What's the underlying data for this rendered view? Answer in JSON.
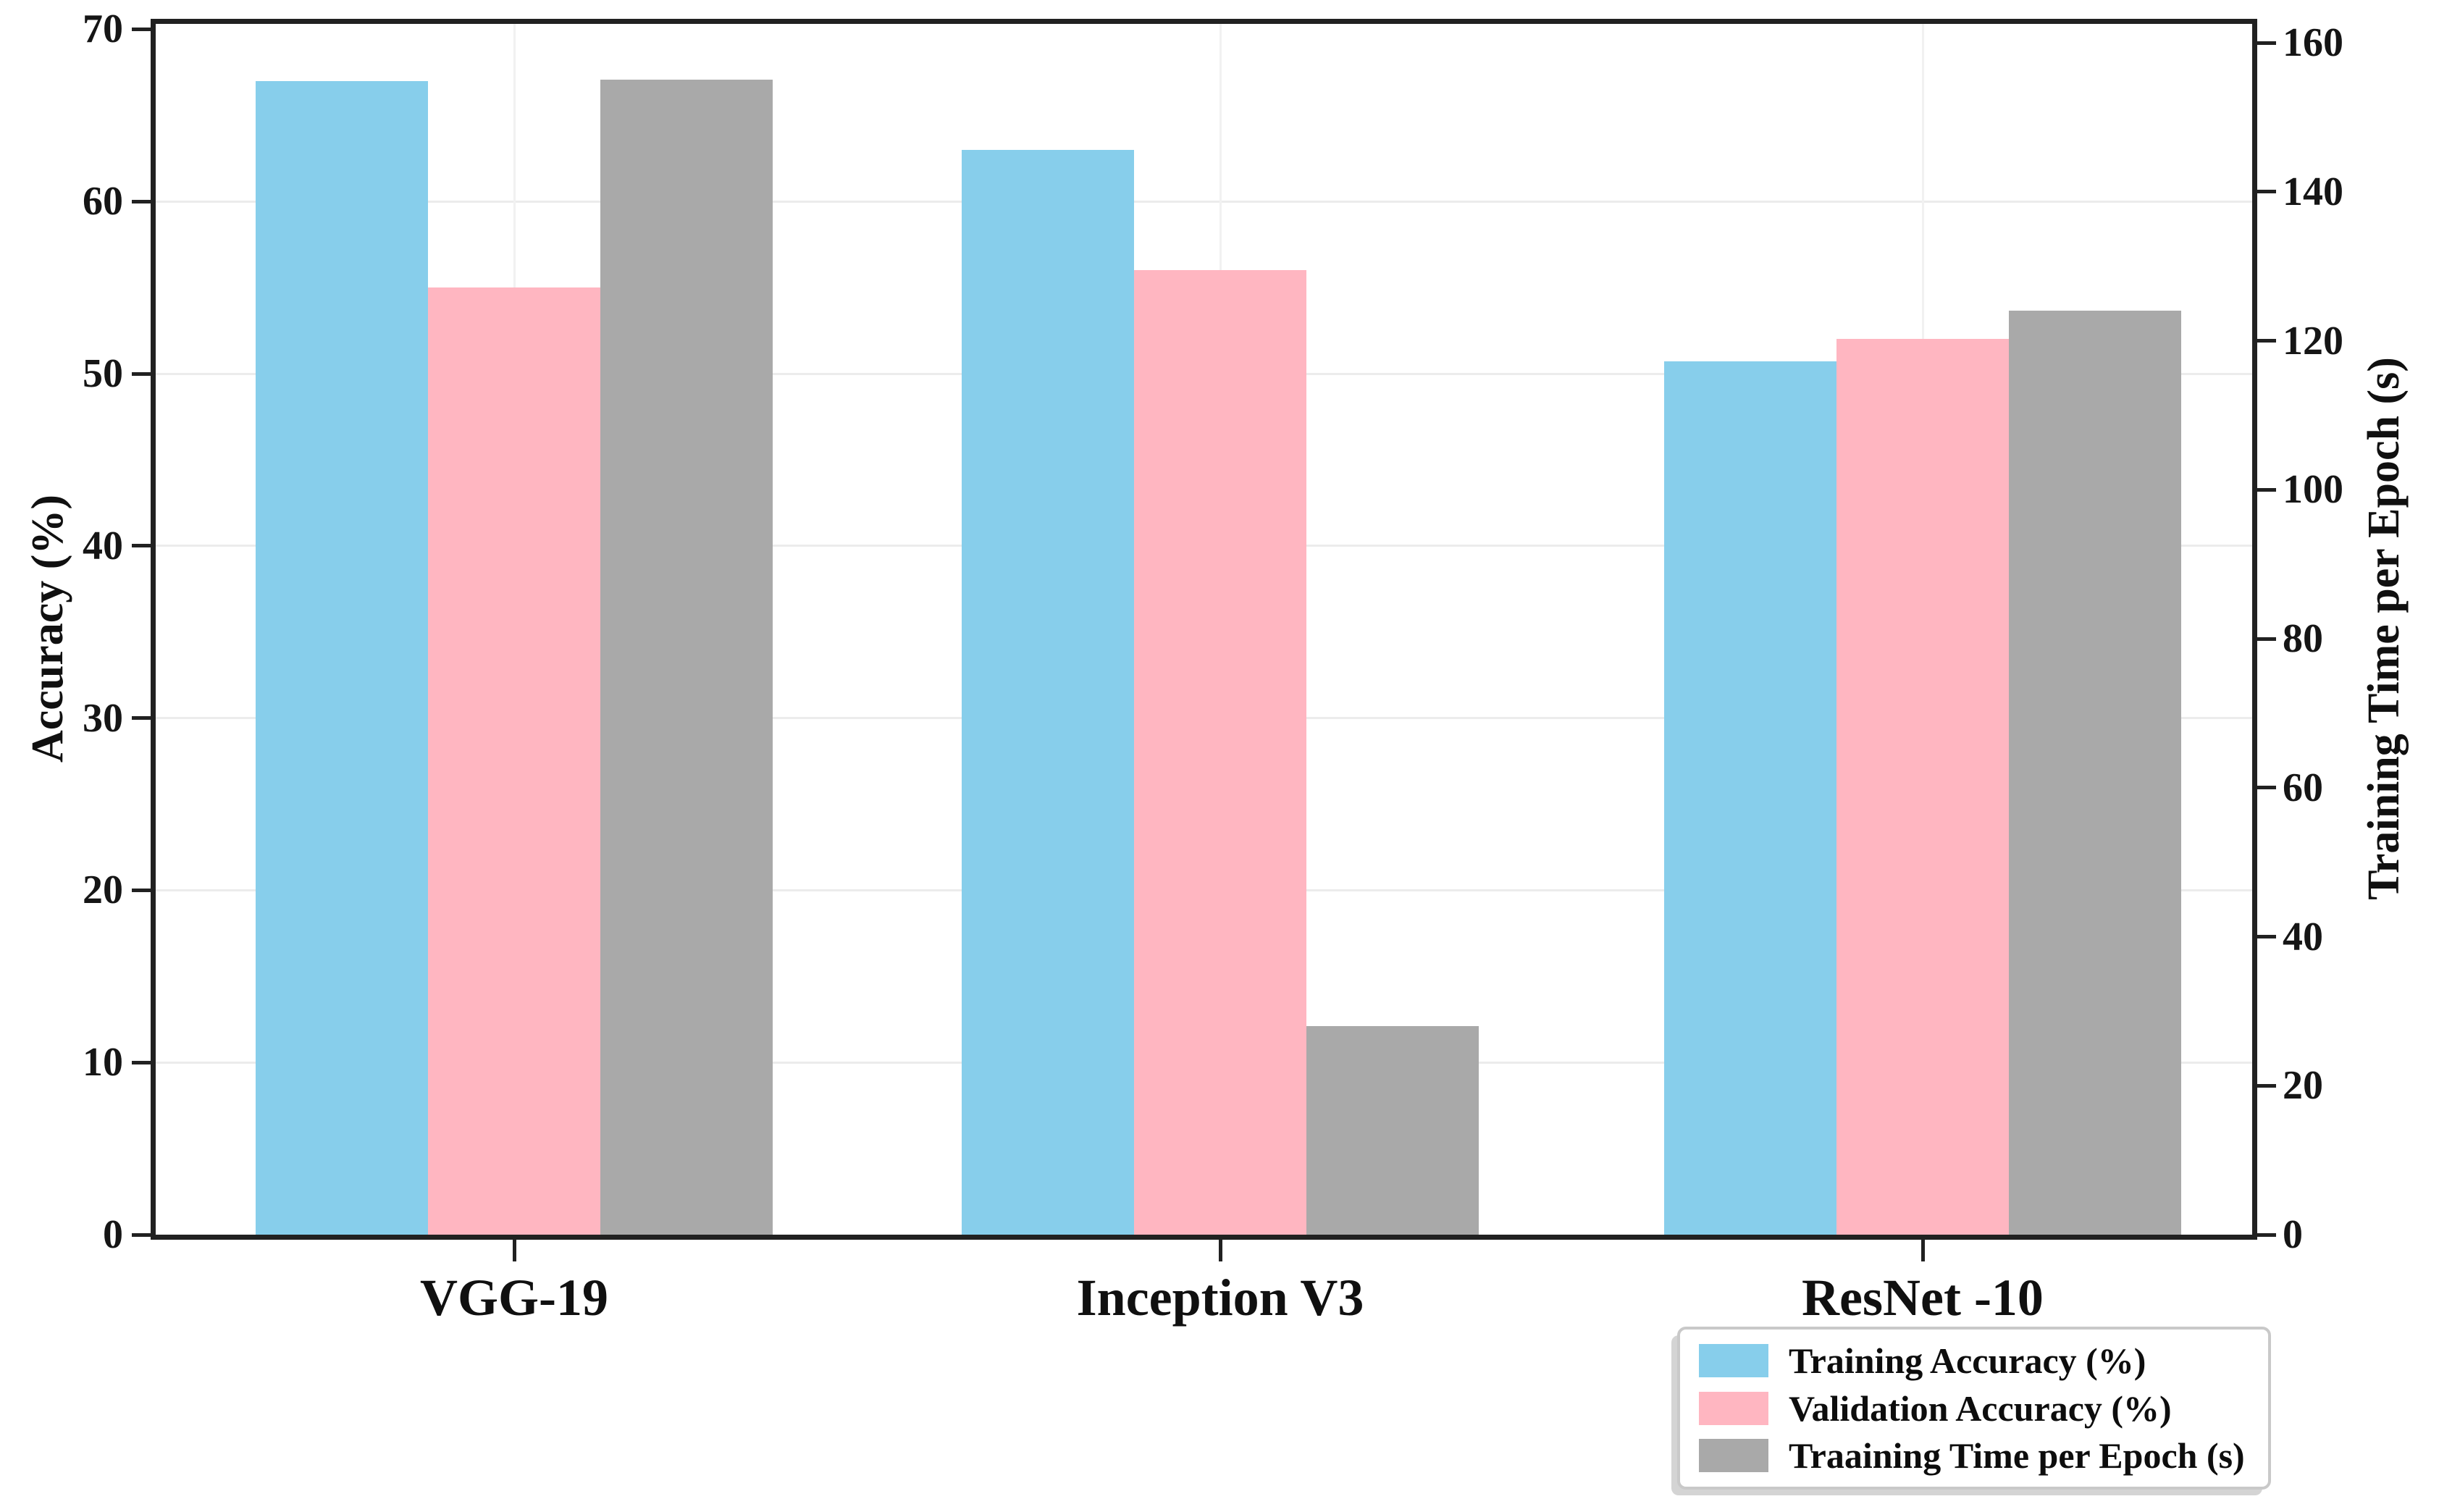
{
  "chart_data": {
    "type": "bar",
    "title": "",
    "categories": [
      "VGG-19",
      "Inception V3",
      "ResNet -10"
    ],
    "series": [
      {
        "name": "Training Accuracy (%)",
        "axis": "left",
        "color": "#87CEEB",
        "values": [
          67,
          63,
          50.7
        ]
      },
      {
        "name": "Validation Accuracy (%)",
        "axis": "left",
        "color": "#FFB6C1",
        "values": [
          55,
          56,
          52
        ]
      },
      {
        "name": "Traaining Time per Epoch (s)",
        "axis": "right",
        "color": "#A9A9A9",
        "values": [
          155,
          28,
          124
        ]
      }
    ],
    "left_axis": {
      "label": "Accuracy (%)",
      "min": 0,
      "max": 70,
      "ticks": [
        0,
        10,
        20,
        30,
        40,
        50,
        60,
        70
      ]
    },
    "right_axis": {
      "label": "Training Time per Epoch (s)",
      "min": 0,
      "max": 160,
      "ticks": [
        0,
        20,
        40,
        60,
        80,
        100,
        120,
        140,
        160
      ]
    },
    "legend": {
      "position": "lower-right-below-plot",
      "entries": [
        "Training Accuracy (%)",
        "Validation Accuracy (%)",
        "Traaining Time per Epoch (s)"
      ]
    },
    "grid": {
      "horizontal": true,
      "vertical": true,
      "color": "#ececec"
    },
    "spine_color": "#212121",
    "background": "#ffffff"
  }
}
